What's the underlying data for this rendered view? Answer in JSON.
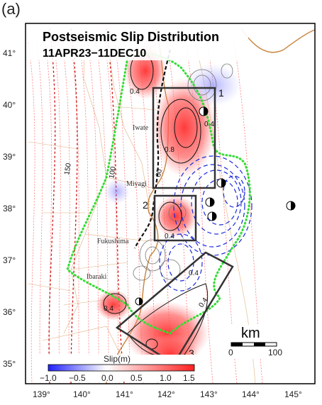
{
  "panel_label": "(a)",
  "title": "Postseismic Slip Distribution",
  "subtitle": "11APR23−11DEC10",
  "lat_ticks": [
    "41°",
    "40°",
    "39°",
    "38°",
    "37°",
    "36°",
    "35°"
  ],
  "lon_ticks": [
    "139°",
    "140°",
    "141°",
    "142°",
    "143°",
    "144°",
    "145°"
  ],
  "places": [
    "Iwate",
    "Miyagi",
    "Fukushima",
    "Ibaraki"
  ],
  "depth_labels": [
    "150",
    "100",
    "60"
  ],
  "contour_labels": [
    "0.4",
    "0.8",
    "0.4",
    "0.4",
    "0.4",
    "0.4",
    "0.4"
  ],
  "box_numbers": [
    "1",
    "2",
    "3"
  ],
  "colorbar": {
    "label": "Slip(m)",
    "ticks": [
      "−1.0",
      "−0.5",
      "0.0",
      "0.5",
      "1.0",
      "1.5"
    ],
    "min": -1.0,
    "max": 1.5,
    "colors": [
      "#2020ff",
      "#ffffff",
      "#ff2020"
    ]
  },
  "scalebar": {
    "unit": "km",
    "labels": [
      "0",
      "100"
    ]
  },
  "colors": {
    "slip_positive": "#ff3a3a",
    "slip_negative": "#3a3aff",
    "coastline": "#c8823a",
    "green_outline": "#33dd33"
  }
}
